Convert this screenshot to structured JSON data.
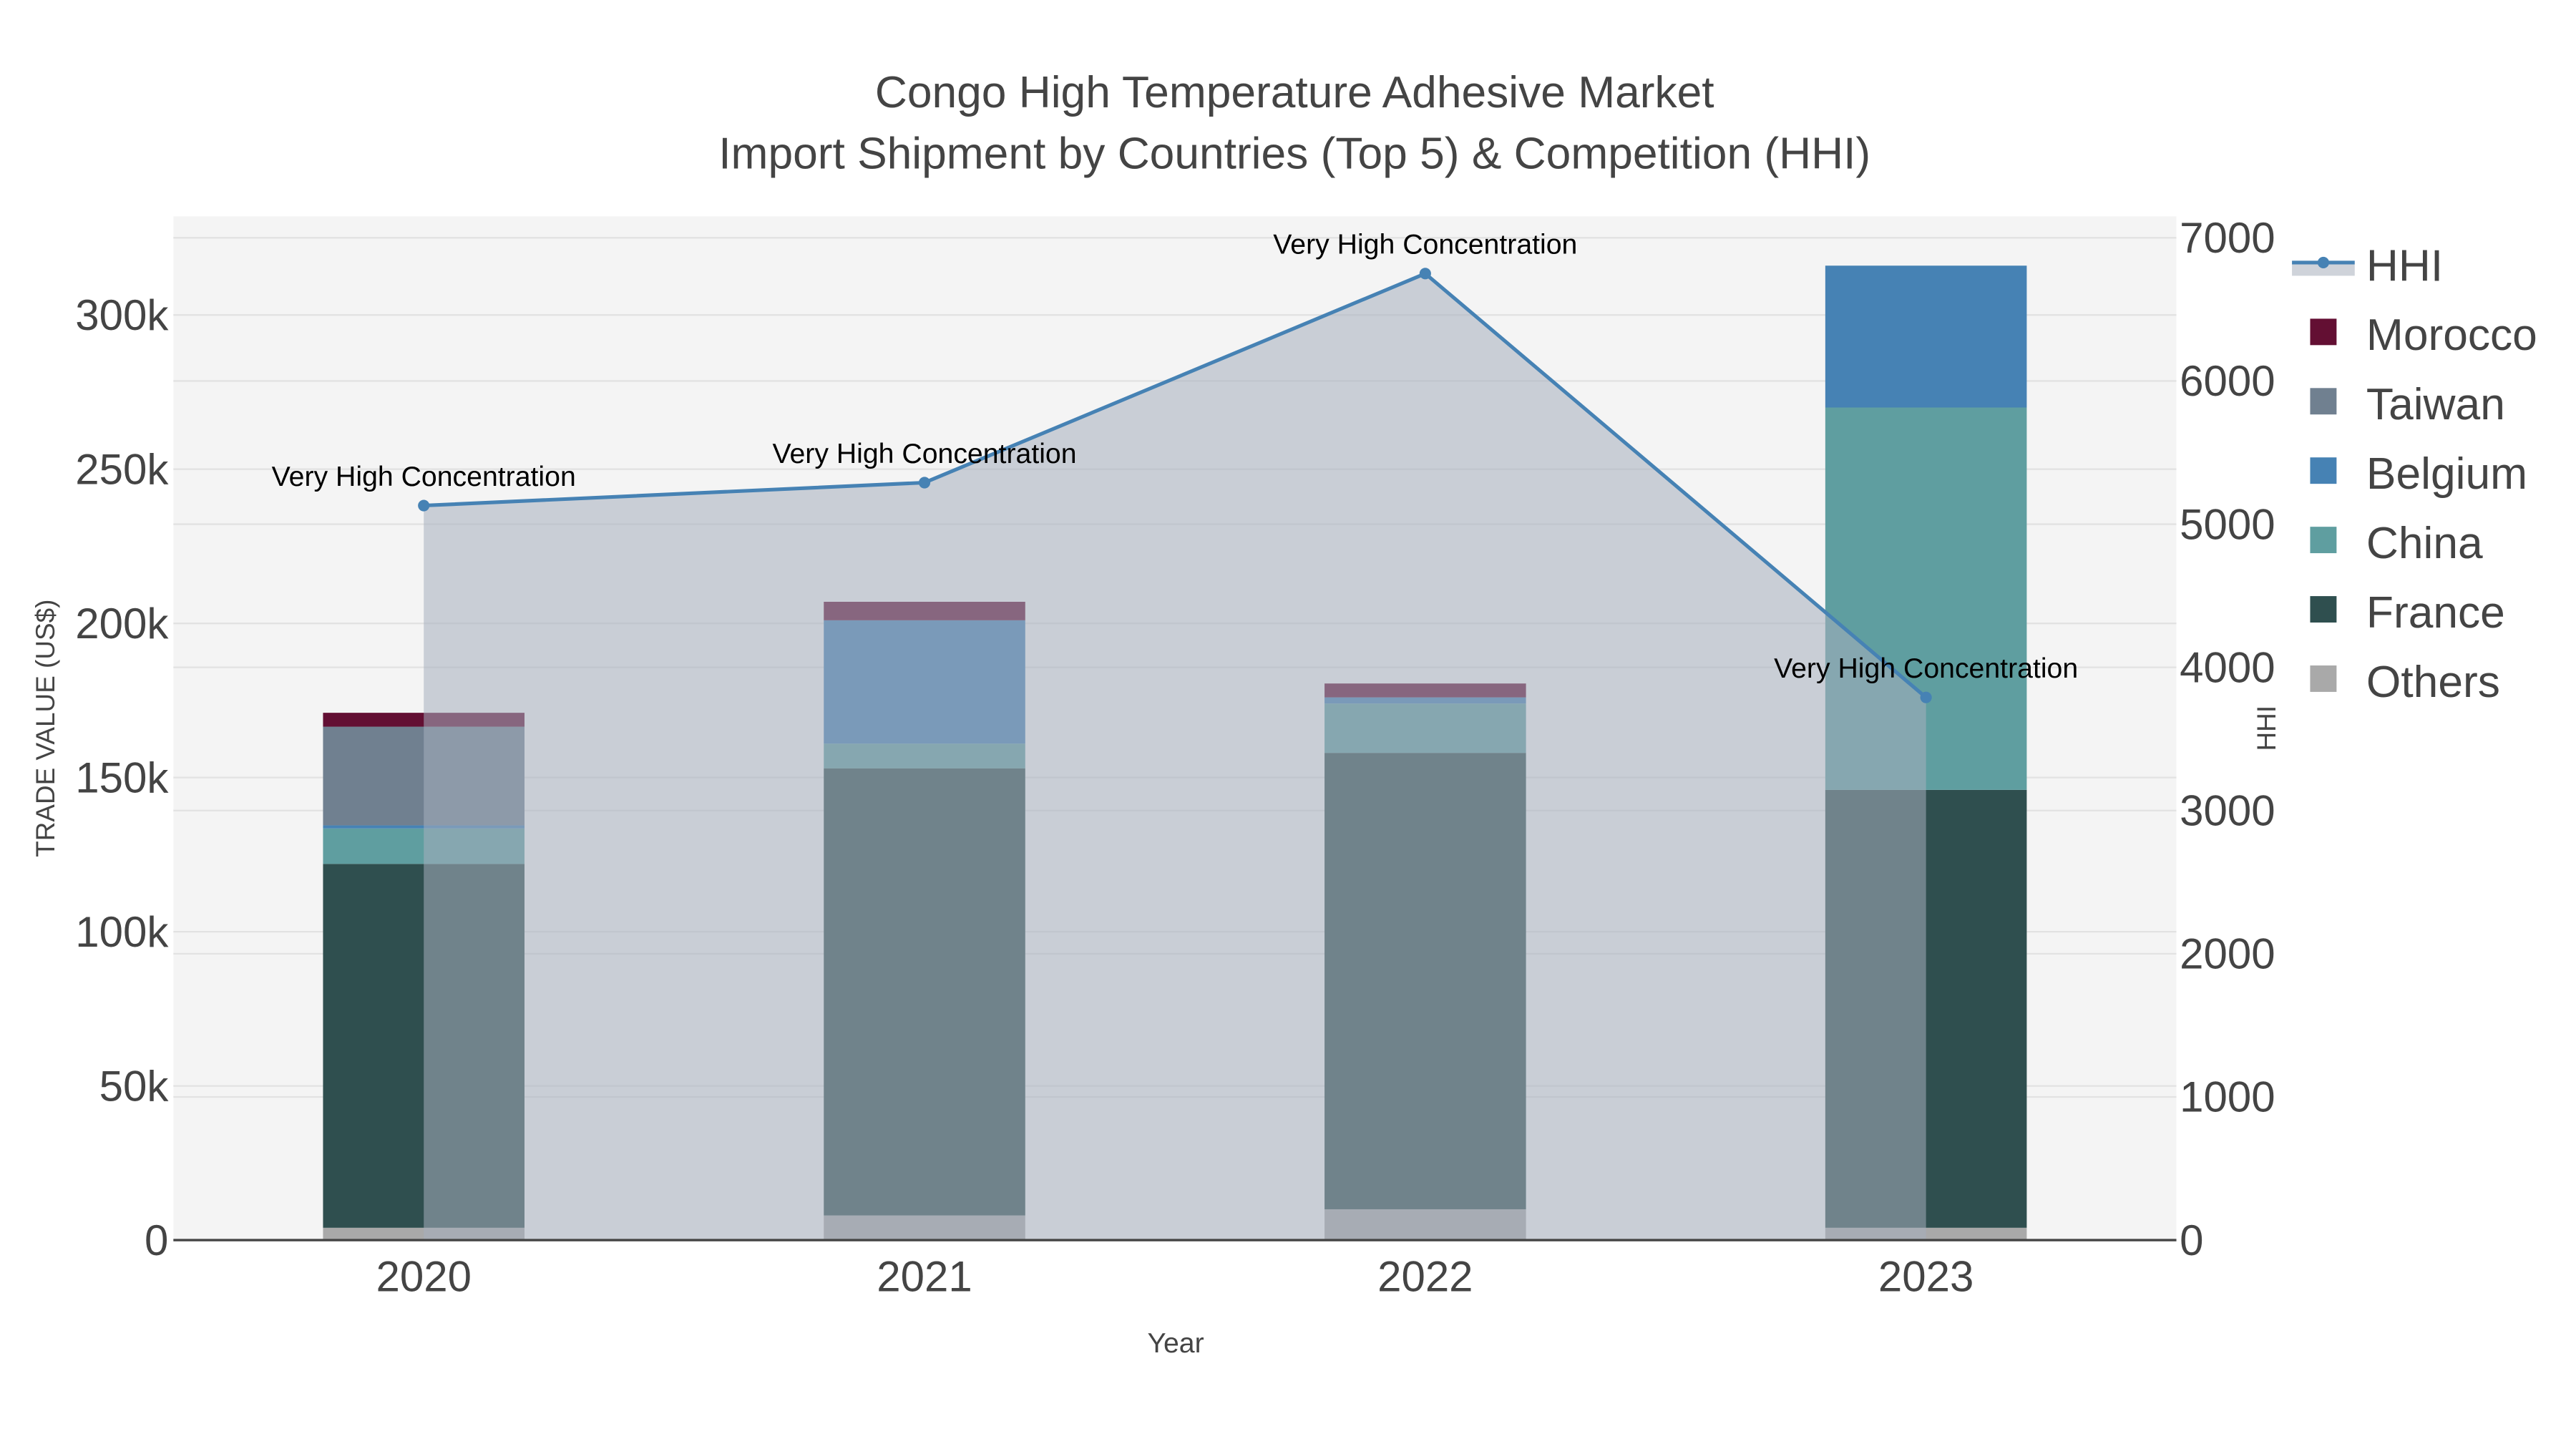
{
  "chart_data": {
    "type": "bar",
    "title": "Congo High Temperature Adhesive Market",
    "subtitle": "Import Shipment by Countries (Top 5) & Competition (HHI)",
    "xlabel": "Year",
    "ylabel": "TRADE VALUE (US$)",
    "y2label": "HHI",
    "categories": [
      "2020",
      "2021",
      "2022",
      "2023"
    ],
    "ylim": [
      0,
      332000
    ],
    "y2lim": [
      0,
      7150
    ],
    "yticks": [
      0,
      50000,
      100000,
      150000,
      200000,
      250000,
      300000
    ],
    "ytick_labels": [
      "0",
      "50k",
      "100k",
      "150k",
      "200k",
      "250k",
      "300k"
    ],
    "y2ticks": [
      0,
      1000,
      2000,
      3000,
      4000,
      5000,
      6000,
      7000
    ],
    "y2tick_labels": [
      "0",
      "1000",
      "2000",
      "3000",
      "4000",
      "5000",
      "6000",
      "7000"
    ],
    "grid": true,
    "legend_placement": "right",
    "series": [
      {
        "name": "Others",
        "color": "#A9A9A9",
        "values": [
          4000,
          8000,
          10000,
          4000
        ]
      },
      {
        "name": "France",
        "color": "#2F4F4F",
        "values": [
          118000,
          145000,
          148000,
          142000
        ]
      },
      {
        "name": "China",
        "color": "#5F9EA0",
        "values": [
          11500,
          8000,
          16000,
          124000
        ]
      },
      {
        "name": "Belgium",
        "color": "#4682B4",
        "values": [
          1000,
          40000,
          2000,
          46000
        ]
      },
      {
        "name": "Taiwan",
        "color": "#708090",
        "values": [
          32000,
          0,
          0,
          0
        ]
      },
      {
        "name": "Morocco",
        "color": "#630F33",
        "values": [
          4500,
          6000,
          4500,
          0
        ]
      }
    ],
    "legend_order": [
      "HHI",
      "Morocco",
      "Taiwan",
      "Belgium",
      "China",
      "France",
      "Others"
    ],
    "hhi": {
      "name": "HHI",
      "color": "#4682B4",
      "values": [
        5130,
        5290,
        6750,
        3790
      ],
      "annotations": [
        "Very High Concentration",
        "Very High Concentration",
        "Very High Concentration",
        "Very High Concentration"
      ]
    }
  }
}
